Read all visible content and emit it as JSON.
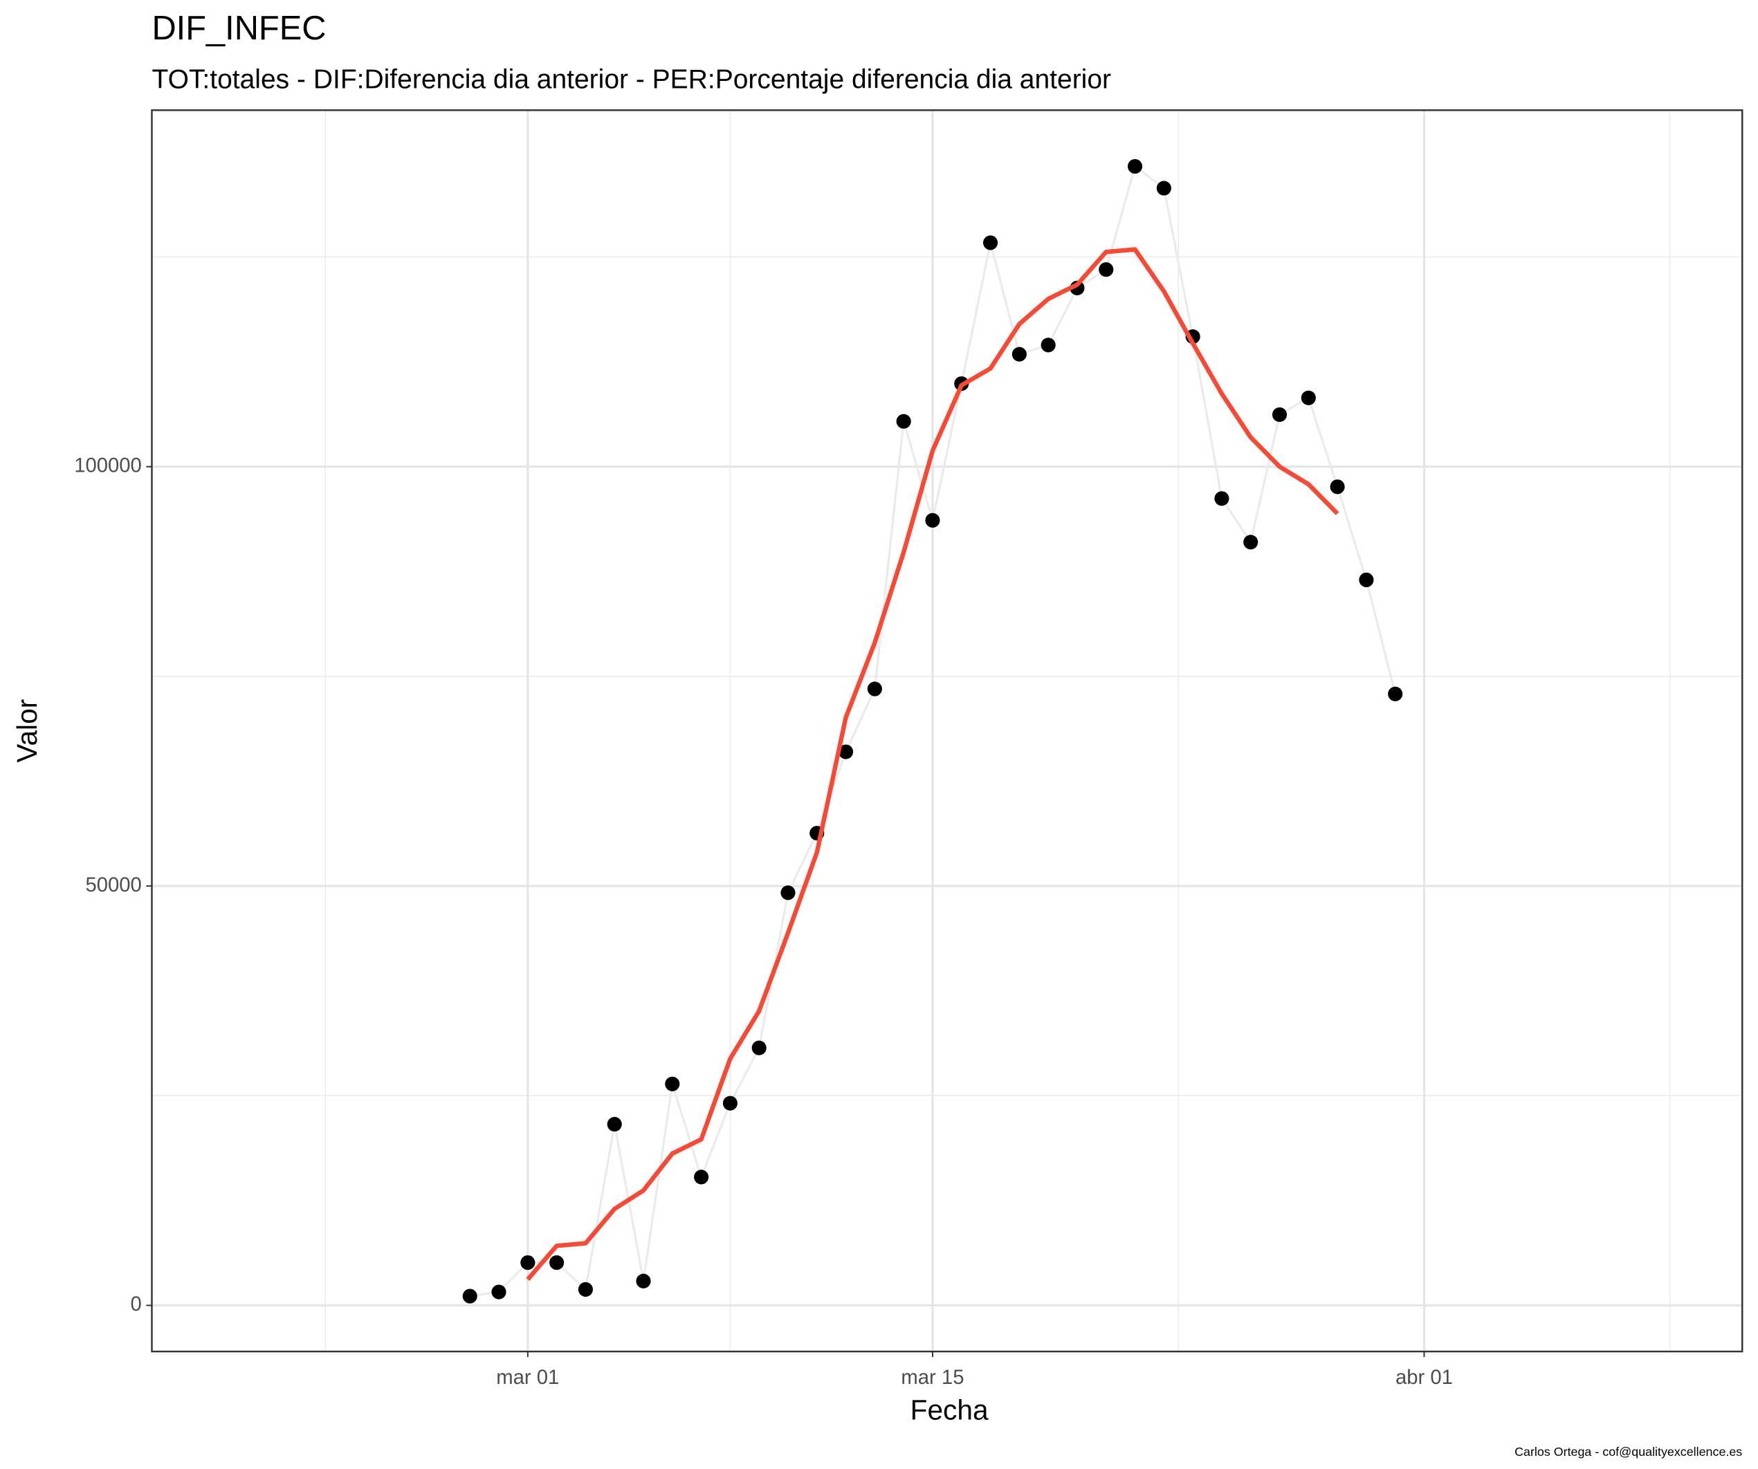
{
  "chart_data": {
    "type": "line",
    "title": "DIF_INFEC",
    "subtitle": "TOT:totales - DIF:Diferencia dia anterior - PER:Porcentaje diferencia dia anterior",
    "x_label": "Fecha",
    "y_label": "Valor",
    "caption": "Carlos Ortega - cof@qualityexcellence.es",
    "x": [
      "02-28",
      "02-29",
      "03-01",
      "03-02",
      "03-03",
      "03-04",
      "03-05",
      "03-06",
      "03-07",
      "03-08",
      "03-09",
      "03-10",
      "03-11",
      "03-12",
      "03-13",
      "03-14",
      "03-15",
      "03-16",
      "03-17",
      "03-18",
      "03-19",
      "03-20",
      "03-21",
      "03-22",
      "03-23",
      "03-24",
      "03-25",
      "03-26",
      "03-27",
      "03-28",
      "03-29",
      "03-30",
      "03-31"
    ],
    "series": [
      {
        "color": "#000000",
        "line_color": "#ebebeb",
        "points": true,
        "values": [
          1100,
          1600,
          5100,
          5100,
          1900,
          21600,
          2900,
          26400,
          15300,
          24100,
          30700,
          49200,
          56300,
          66000,
          73500,
          105400,
          93600,
          109900,
          126700,
          113400,
          114500,
          121300,
          123500,
          135800,
          133200,
          115500,
          96200,
          91000,
          106200,
          108200,
          97600,
          86500,
          72900
        ]
      },
      {
        "color": "#f44b39",
        "points": false,
        "values": [
          null,
          null,
          3100,
          7100,
          7400,
          11500,
          13700,
          18100,
          19800,
          29400,
          35100,
          44400,
          54000,
          70100,
          79000,
          89800,
          101900,
          109700,
          111700,
          117000,
          120000,
          121700,
          125600,
          125900,
          120900,
          114700,
          108700,
          103500,
          100000,
          97900,
          94400,
          null,
          null
        ]
      }
    ],
    "xlim": [
      "02-17",
      "04-12"
    ],
    "xticks": [
      {
        "value": "03-01",
        "label": "mar 01"
      },
      {
        "value": "03-15",
        "label": "mar 15"
      },
      {
        "value": "04-01",
        "label": "abr 01"
      }
    ],
    "ylim": [
      -5500,
      142500
    ],
    "yticks": [
      0,
      50000,
      100000
    ],
    "grid": true
  }
}
